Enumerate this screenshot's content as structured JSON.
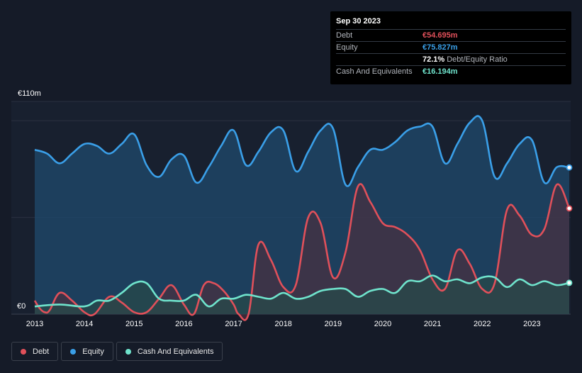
{
  "tooltip": {
    "date": "Sep 30 2023",
    "rows": [
      {
        "label": "Debt",
        "value": "€54.695m",
        "color": "#e0505a"
      },
      {
        "label": "Equity",
        "value": "€75.827m",
        "color": "#3a9fe8"
      },
      {
        "label": "",
        "value": "72.1%",
        "extra": "Debt/Equity Ratio",
        "color": "#ffffff"
      },
      {
        "label": "Cash And Equivalents",
        "value": "€16.194m",
        "color": "#6fe3cc"
      }
    ]
  },
  "legend": [
    {
      "label": "Debt",
      "color": "#e0505a"
    },
    {
      "label": "Equity",
      "color": "#3a9fe8"
    },
    {
      "label": "Cash And Equivalents",
      "color": "#6fe3cc"
    }
  ],
  "chart_data": {
    "type": "area",
    "y_top_label": "€110m",
    "y_bottom_label": "€0",
    "ylim": [
      0,
      110
    ],
    "xlim": [
      2013.0,
      2023.75
    ],
    "x_ticks": [
      2013,
      2014,
      2015,
      2016,
      2017,
      2018,
      2019,
      2020,
      2021,
      2022,
      2023
    ],
    "x_tick_labels": [
      "2013",
      "2014",
      "2015",
      "2016",
      "2017",
      "2018",
      "2019",
      "2020",
      "2021",
      "2022",
      "2023"
    ],
    "series": [
      {
        "name": "Equity",
        "color": "#3a9fe8",
        "fill": "#1f4a6e",
        "x": [
          2013.0,
          2013.25,
          2013.5,
          2013.75,
          2014.0,
          2014.25,
          2014.5,
          2014.75,
          2015.0,
          2015.25,
          2015.5,
          2015.75,
          2016.0,
          2016.25,
          2016.5,
          2016.75,
          2017.0,
          2017.25,
          2017.5,
          2017.75,
          2018.0,
          2018.25,
          2018.5,
          2018.75,
          2019.0,
          2019.25,
          2019.5,
          2019.75,
          2020.0,
          2020.25,
          2020.5,
          2020.75,
          2021.0,
          2021.25,
          2021.5,
          2021.75,
          2022.0,
          2022.25,
          2022.5,
          2022.75,
          2023.0,
          2023.25,
          2023.5,
          2023.75
        ],
        "values": [
          85,
          83,
          78,
          83,
          88,
          87,
          83,
          88,
          93,
          77,
          71,
          80,
          82,
          68,
          76,
          87,
          95,
          77,
          84,
          94,
          95,
          74,
          84,
          95,
          96,
          67,
          76,
          85,
          85,
          89,
          95,
          97,
          97,
          78,
          88,
          99,
          100,
          71,
          78,
          88,
          90,
          68,
          76,
          75.827
        ]
      },
      {
        "name": "Debt",
        "color": "#e0505a",
        "fill": "#4a3040",
        "x": [
          2013.0,
          2013.1,
          2013.2,
          2013.3,
          2013.5,
          2013.75,
          2014.0,
          2014.2,
          2014.5,
          2014.75,
          2015.0,
          2015.25,
          2015.5,
          2015.75,
          2016.0,
          2016.2,
          2016.4,
          2016.6,
          2016.8,
          2017.0,
          2017.1,
          2017.3,
          2017.5,
          2017.75,
          2018.0,
          2018.25,
          2018.5,
          2018.75,
          2019.0,
          2019.25,
          2019.5,
          2019.75,
          2020.0,
          2020.25,
          2020.5,
          2020.75,
          2021.0,
          2021.25,
          2021.5,
          2021.75,
          2022.0,
          2022.25,
          2022.5,
          2022.75,
          2023.0,
          2023.25,
          2023.5,
          2023.75
        ],
        "values": [
          7,
          3,
          1,
          2,
          11,
          7,
          1,
          0,
          9,
          6,
          1,
          1,
          8,
          15,
          5,
          0,
          15,
          16,
          12,
          5,
          0,
          0,
          36,
          28,
          14,
          15,
          50,
          47,
          19,
          32,
          66,
          58,
          47,
          45,
          41,
          33,
          18,
          13,
          33,
          26,
          13,
          16,
          54,
          51,
          41,
          44,
          67,
          54.695
        ]
      },
      {
        "name": "Cash And Equivalents",
        "color": "#6fe3cc",
        "fill": "#274a4a",
        "x": [
          2013.0,
          2013.5,
          2014.0,
          2014.25,
          2014.5,
          2014.75,
          2015.0,
          2015.25,
          2015.5,
          2015.75,
          2016.0,
          2016.25,
          2016.5,
          2016.75,
          2017.0,
          2017.25,
          2017.5,
          2017.75,
          2018.0,
          2018.25,
          2018.5,
          2018.75,
          2019.0,
          2019.25,
          2019.5,
          2019.75,
          2020.0,
          2020.25,
          2020.5,
          2020.75,
          2021.0,
          2021.25,
          2021.5,
          2021.75,
          2022.0,
          2022.25,
          2022.5,
          2022.75,
          2023.0,
          2023.25,
          2023.5,
          2023.75
        ],
        "values": [
          4,
          5,
          4,
          7,
          7,
          11,
          16,
          16,
          8,
          7,
          7,
          10,
          4,
          8,
          8,
          10,
          9,
          8,
          11,
          8,
          9,
          12,
          13,
          13,
          9,
          12,
          13,
          11,
          17,
          17,
          20,
          17,
          18,
          16,
          19,
          19,
          14,
          18,
          15,
          17,
          15,
          16.194
        ]
      }
    ]
  }
}
